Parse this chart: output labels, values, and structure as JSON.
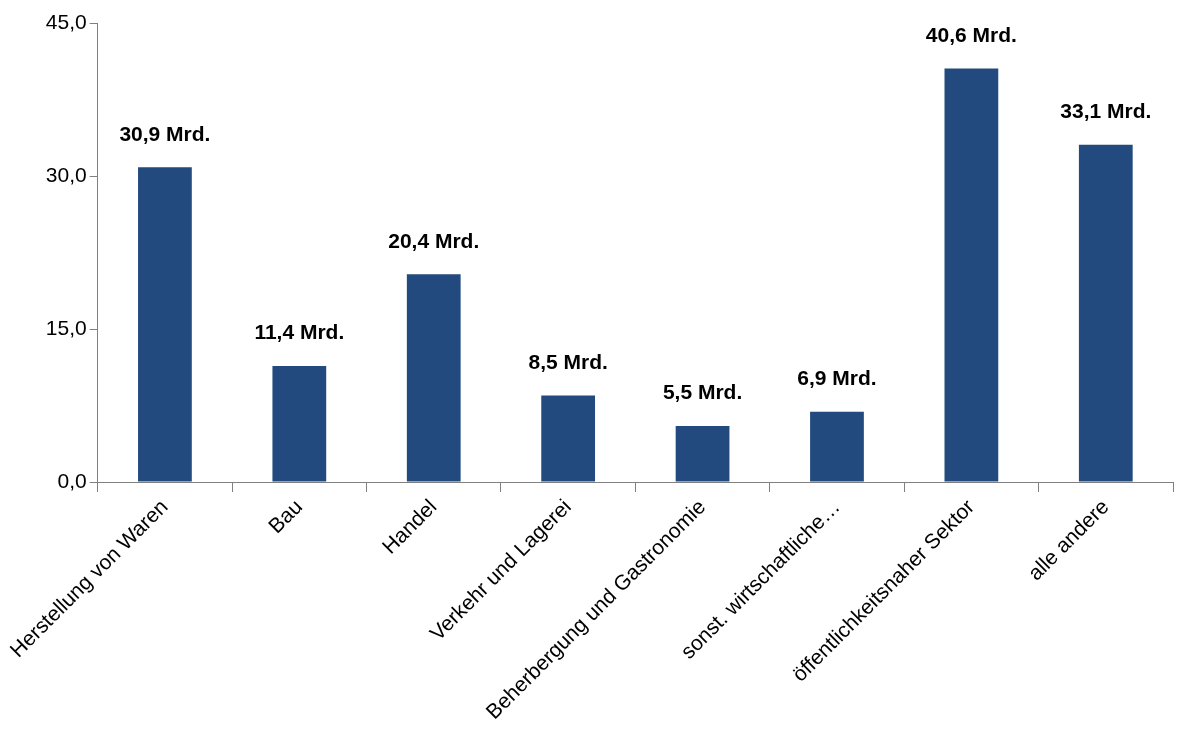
{
  "chart_data": {
    "type": "bar",
    "categories": [
      "Herstellung von Waren",
      "Bau",
      "Handel",
      "Verkehr und Lagerei",
      "Beherbergung und Gastronomie",
      "sonst. wirtschaftliche…",
      "öffentlichkeitsnaher Sektor",
      "alle andere"
    ],
    "values": [
      30.9,
      11.4,
      20.4,
      8.5,
      5.5,
      6.9,
      40.6,
      33.1
    ],
    "value_labels": [
      "30,9 Mrd.",
      "11,4 Mrd.",
      "20,4 Mrd.",
      "8,5 Mrd.",
      "5,5 Mrd.",
      "6,9 Mrd.",
      "40,6 Mrd.",
      "33,1 Mrd."
    ],
    "color": "#224a7e",
    "ylim": [
      0,
      45
    ],
    "yticks": [
      {
        "value": 0,
        "label": "0,0"
      },
      {
        "value": 15,
        "label": "15,0"
      },
      {
        "value": 30,
        "label": "30,0"
      },
      {
        "value": 45,
        "label": "45,0"
      }
    ],
    "grid": false,
    "legend": false
  }
}
